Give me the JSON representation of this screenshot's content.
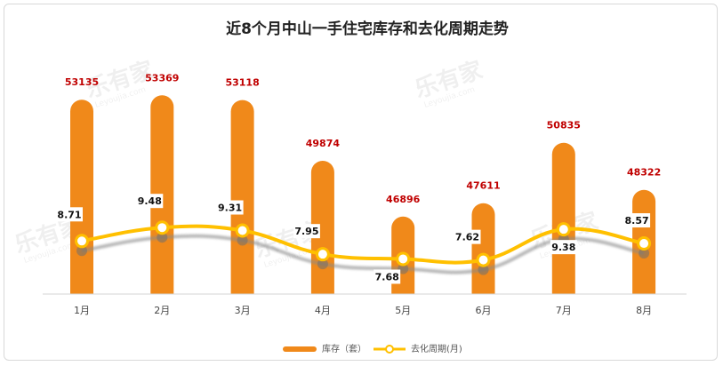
{
  "chart_data": {
    "type": "bar",
    "title": "近8个月中山一手住宅库存和去化周期走势",
    "categories": [
      "1月",
      "2月",
      "3月",
      "4月",
      "5月",
      "6月",
      "7月",
      "8月"
    ],
    "series": [
      {
        "name": "库存（套）",
        "type": "bar",
        "values": [
          53135,
          53369,
          53118,
          49874,
          46896,
          47611,
          50835,
          48322
        ],
        "color": "#f0891a"
      },
      {
        "name": "去化周期(月)",
        "type": "line",
        "values": [
          8.71,
          9.48,
          9.31,
          7.95,
          7.68,
          7.62,
          9.38,
          8.57
        ],
        "color": "#ffc000"
      }
    ],
    "bar_ylim": [
      42000,
      54000
    ],
    "line_ylim": [
      0,
      16
    ],
    "legend": "bottom-center",
    "grid": false
  },
  "watermark": {
    "brand": "乐有家",
    "domain": "Leyoujia.com"
  }
}
